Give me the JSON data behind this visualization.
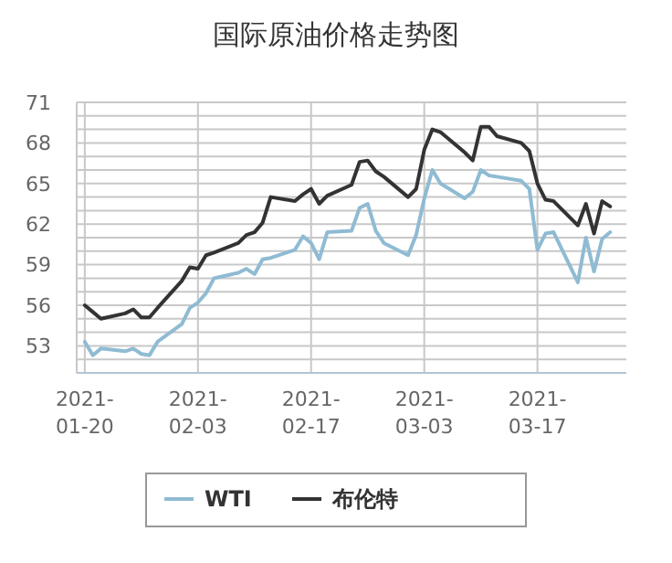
{
  "chart_data": {
    "type": "line",
    "title": "国际原油价格走势图",
    "x": [
      "2021-01-20",
      "2021-01-21",
      "2021-01-22",
      "2021-01-25",
      "2021-01-26",
      "2021-01-27",
      "2021-01-28",
      "2021-01-29",
      "2021-02-01",
      "2021-02-02",
      "2021-02-03",
      "2021-02-04",
      "2021-02-05",
      "2021-02-08",
      "2021-02-09",
      "2021-02-10",
      "2021-02-11",
      "2021-02-12",
      "2021-02-15",
      "2021-02-16",
      "2021-02-17",
      "2021-02-18",
      "2021-02-19",
      "2021-02-22",
      "2021-02-23",
      "2021-02-24",
      "2021-02-25",
      "2021-02-26",
      "2021-03-01",
      "2021-03-02",
      "2021-03-03",
      "2021-03-04",
      "2021-03-05",
      "2021-03-08",
      "2021-03-09",
      "2021-03-10",
      "2021-03-11",
      "2021-03-12",
      "2021-03-15",
      "2021-03-16",
      "2021-03-17",
      "2021-03-18",
      "2021-03-19",
      "2021-03-22",
      "2021-03-23",
      "2021-03-24",
      "2021-03-25",
      "2021-03-26"
    ],
    "series": [
      {
        "name": "WTI",
        "color": "#8fbbd3",
        "values": [
          53.3,
          52.3,
          52.8,
          52.6,
          52.8,
          52.4,
          52.3,
          53.3,
          54.6,
          55.8,
          56.2,
          56.9,
          58.0,
          58.4,
          58.7,
          58.3,
          59.4,
          59.5,
          60.1,
          61.1,
          60.6,
          59.4,
          61.4,
          61.5,
          63.2,
          63.5,
          61.5,
          60.6,
          59.7,
          61.2,
          63.9,
          66.0,
          65.0,
          63.9,
          64.4,
          66.0,
          65.6,
          65.5,
          65.2,
          64.6,
          60.1,
          61.3,
          61.4,
          57.7,
          61.0,
          58.5,
          60.9,
          61.4
        ]
      },
      {
        "name": "布伦特",
        "color": "#333333",
        "values": [
          56.0,
          55.5,
          55.0,
          55.4,
          55.7,
          55.1,
          55.1,
          55.8,
          57.8,
          58.8,
          58.7,
          59.7,
          59.9,
          60.6,
          61.2,
          61.4,
          62.1,
          64.0,
          63.7,
          64.2,
          64.6,
          63.5,
          64.1,
          64.9,
          66.6,
          66.7,
          65.9,
          65.5,
          64.0,
          64.6,
          67.5,
          69.0,
          68.8,
          67.3,
          66.7,
          69.2,
          69.2,
          68.5,
          68.0,
          67.4,
          65.0,
          63.8,
          63.7,
          61.9,
          63.5,
          61.3,
          63.7,
          63.3
        ]
      }
    ],
    "xlim": [
      "2021-01-19",
      "2021-03-28"
    ],
    "xticks": [
      {
        "value": "2021-01-20",
        "label": "2021-\n01-20"
      },
      {
        "value": "2021-02-03",
        "label": "2021-\n02-03"
      },
      {
        "value": "2021-02-17",
        "label": "2021-\n02-17"
      },
      {
        "value": "2021-03-03",
        "label": "2021-\n03-03"
      },
      {
        "value": "2021-03-17",
        "label": "2021-\n03-17"
      }
    ],
    "ylim": [
      51,
      71
    ],
    "yticks": [
      {
        "value": 51,
        "label": null
      },
      {
        "value": 52,
        "label": null
      },
      53,
      {
        "value": 54,
        "label": null
      },
      {
        "value": 55,
        "label": null
      },
      56,
      {
        "value": 57,
        "label": null
      },
      {
        "value": 58,
        "label": null
      },
      59,
      {
        "value": 60,
        "label": null
      },
      {
        "value": 61,
        "label": null
      },
      62,
      {
        "value": 63,
        "label": null
      },
      {
        "value": 64,
        "label": null
      },
      65,
      {
        "value": 66,
        "label": null
      },
      {
        "value": 67,
        "label": null
      },
      68,
      {
        "value": 69,
        "label": null
      },
      {
        "value": 70,
        "label": null
      },
      71
    ],
    "grid": true,
    "legend": "bottom",
    "marker": "none",
    "line_style": "solid"
  }
}
